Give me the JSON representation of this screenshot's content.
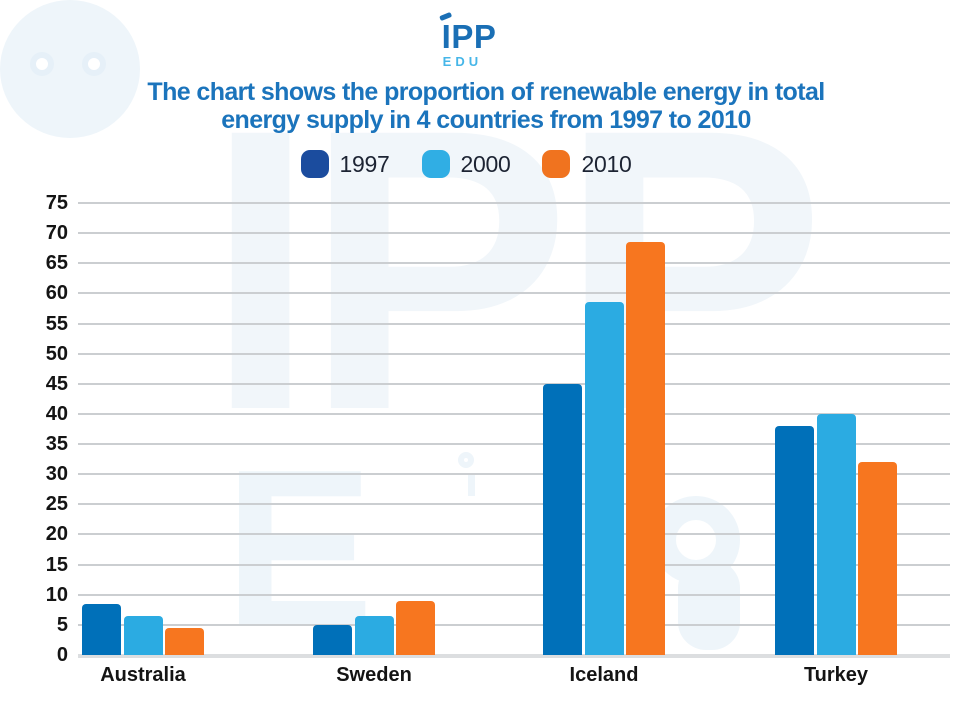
{
  "header": {
    "logo_text": "IPP",
    "logo_subtext": "EDU",
    "title_line1": "The chart shows the proportion of renewable energy in total",
    "title_line2": "energy supply in 4 countries from 1997 to 2010"
  },
  "watermark": {
    "top_text": "IPP",
    "bottom_letter": "E"
  },
  "colors": {
    "title_blue": "#1b74bc",
    "logo_main": "#1a6fb5",
    "logo_sub": "#46b6e8",
    "gridline": "#cbced1",
    "axis_text": "#141414",
    "legend_text": "#1d2433"
  },
  "legend": {
    "position": "top",
    "items": [
      {
        "label": "1997",
        "color": "#1b4c9e"
      },
      {
        "label": "2000",
        "color": "#30aee4"
      },
      {
        "label": "2010",
        "color": "#f0731f"
      }
    ]
  },
  "chart_data": {
    "type": "bar",
    "title": "The chart shows the proportion of renewable energy in total energy supply in 4 countries from 1997 to 2010",
    "categories": [
      "Australia",
      "Sweden",
      "Iceland",
      "Turkey"
    ],
    "series": [
      {
        "name": "1997",
        "color": "#0070b9",
        "values": [
          8.5,
          5,
          45,
          38
        ]
      },
      {
        "name": "2000",
        "color": "#2babe2",
        "values": [
          6.5,
          6.5,
          58.5,
          40
        ]
      },
      {
        "name": "2010",
        "color": "#f7761f",
        "values": [
          4.5,
          9,
          68.5,
          32
        ]
      }
    ],
    "xlabel": "",
    "ylabel": "",
    "ylim": [
      0,
      75
    ],
    "ytick_step": 5,
    "grid": true,
    "legend_position": "top"
  }
}
